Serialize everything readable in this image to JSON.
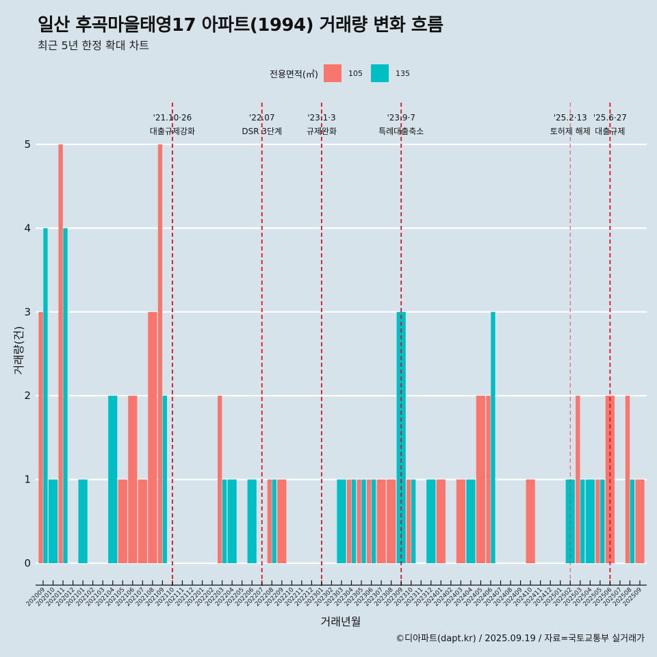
{
  "header": {
    "title": "일산 후곡마을태영17 아파트(1994) 거래량 변화 흐름",
    "subtitle": "최근 5년 한정 확대 차트"
  },
  "legend": {
    "title": "전용면적(㎡)",
    "items": [
      {
        "label": "105",
        "color": "#F8766D"
      },
      {
        "label": "135",
        "color": "#00BFC4"
      }
    ]
  },
  "caption": "©디아파트(dapt.kr) / 2025.09.19 / 자료=국토교통부 실거래가",
  "chart_data": {
    "type": "bar",
    "title": "일산 후곡마을태영17 아파트(1994) 거래량 변화 흐름",
    "subtitle": "최근 5년 한정 확대 차트",
    "xlabel": "거래년월",
    "ylabel": "거래량(건)",
    "ylim": [
      0,
      5
    ],
    "yticks": [
      0,
      1,
      2,
      3,
      4,
      5
    ],
    "grid": "horizontal",
    "legend_position": "top",
    "categories": [
      "202009",
      "202010",
      "202011",
      "202012",
      "202101",
      "202102",
      "202103",
      "202104",
      "202105",
      "202106",
      "202107",
      "202108",
      "202109",
      "202110",
      "202111",
      "202112",
      "202201",
      "202202",
      "202203",
      "202204",
      "202205",
      "202206",
      "202207",
      "202208",
      "202209",
      "202210",
      "202211",
      "202212",
      "202301",
      "202302",
      "202303",
      "202304",
      "202305",
      "202306",
      "202307",
      "202308",
      "202309",
      "202310",
      "202311",
      "202312",
      "202401",
      "202402",
      "202403",
      "202404",
      "202405",
      "202406",
      "202407",
      "202408",
      "202409",
      "202410",
      "202411",
      "202412",
      "202501",
      "202502",
      "202503",
      "202504",
      "202505",
      "202506",
      "202507",
      "202508",
      "202509"
    ],
    "series": [
      {
        "name": "105",
        "color": "#F8766D",
        "values": [
          3,
          0,
          5,
          0,
          0,
          0,
          0,
          0,
          1,
          2,
          1,
          3,
          5,
          0,
          0,
          0,
          0,
          0,
          2,
          0,
          0,
          0,
          0,
          1,
          1,
          0,
          0,
          0,
          0,
          0,
          0,
          1,
          1,
          1,
          1,
          1,
          0,
          1,
          0,
          0,
          1,
          0,
          1,
          0,
          2,
          2,
          0,
          0,
          0,
          1,
          0,
          0,
          0,
          0,
          2,
          0,
          1,
          2,
          0,
          2,
          1
        ]
      },
      {
        "name": "135",
        "color": "#00BFC4",
        "values": [
          4,
          1,
          4,
          0,
          1,
          0,
          0,
          2,
          0,
          0,
          0,
          0,
          2,
          0,
          0,
          0,
          0,
          0,
          1,
          1,
          0,
          1,
          0,
          1,
          0,
          0,
          0,
          0,
          0,
          0,
          1,
          1,
          1,
          1,
          0,
          0,
          3,
          1,
          0,
          1,
          0,
          0,
          0,
          1,
          0,
          3,
          0,
          0,
          0,
          0,
          0,
          0,
          0,
          1,
          1,
          1,
          1,
          0,
          0,
          1,
          0
        ]
      }
    ],
    "annotations": [
      {
        "x": "202110",
        "date": "'21.10·26",
        "label": "대출규제강화",
        "style": "dashed"
      },
      {
        "x": "202207",
        "date": "'22.07",
        "label": "DSR 3단계",
        "style": "dashed"
      },
      {
        "x": "202301",
        "date": "'23.1·3",
        "label": "규제완화",
        "style": "dashed"
      },
      {
        "x": "202309",
        "date": "'23.9·7",
        "label": "특례대출축소",
        "style": "dashed"
      },
      {
        "x": "202502",
        "date": "'25.2·13",
        "label": "토허제 해제",
        "style": "dashed-thin"
      },
      {
        "x": "202506",
        "date": "'25.6·27",
        "label": "대출규제",
        "style": "dashed"
      }
    ]
  }
}
